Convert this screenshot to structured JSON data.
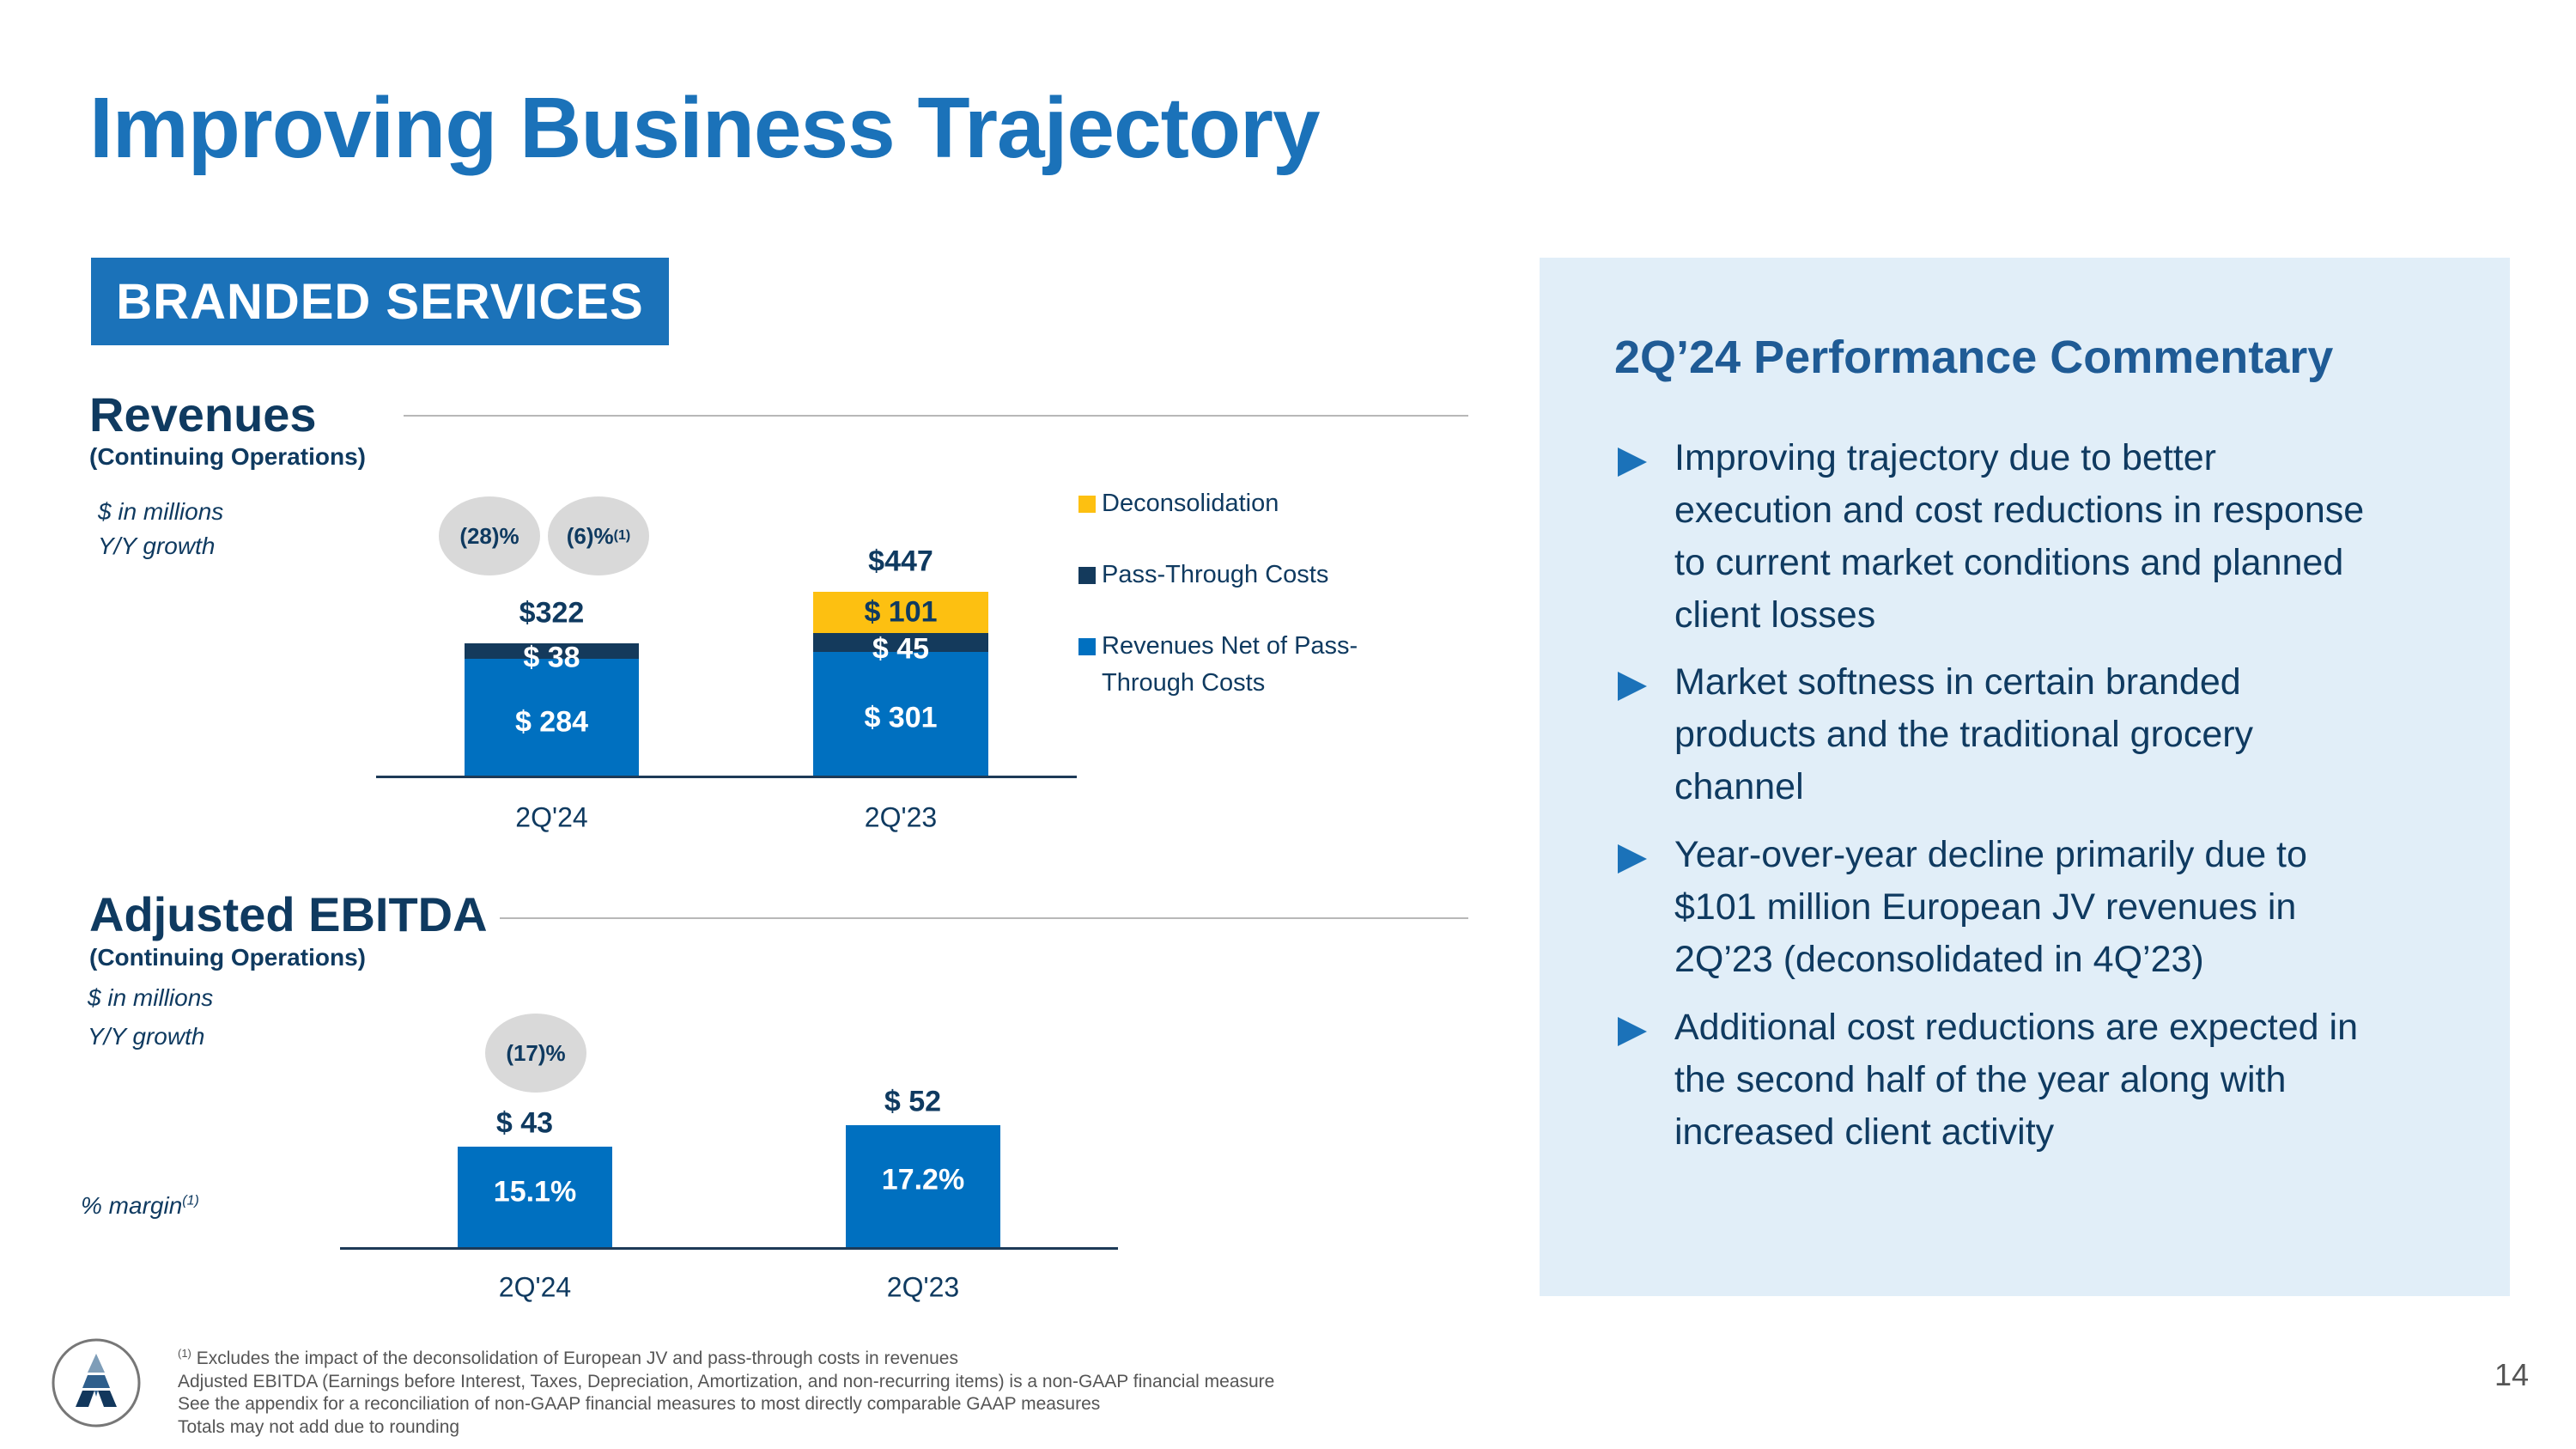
{
  "title": "Improving Business Trajectory",
  "banner": "BRANDED SERVICES",
  "revenues": {
    "heading": "Revenues",
    "subheading": "(Continuing Operations)",
    "units": "$ in millions",
    "growth_label": "Y/Y growth",
    "growth_bubbles": [
      {
        "value": "(28)%",
        "sup": ""
      },
      {
        "value": "(6)%",
        "sup": "(1)"
      }
    ]
  },
  "ebitda": {
    "heading": "Adjusted EBITDA",
    "subheading": "(Continuing Operations)",
    "units": "$ in millions",
    "growth_label": "Y/Y growth",
    "growth_bubble": "(17)%",
    "margin_label": "% margin",
    "margin_sup": "(1)"
  },
  "chart_data": [
    {
      "type": "bar",
      "stacked": true,
      "categories": [
        "2Q'24",
        "2Q'23"
      ],
      "series": [
        {
          "name": "Revenues Net of Pass-Through Costs",
          "values": [
            284,
            301
          ],
          "labels": [
            "$ 284",
            "$ 301"
          ],
          "color": "#0070c0"
        },
        {
          "name": "Pass-Through Costs",
          "values": [
            38,
            45
          ],
          "labels": [
            "$ 38",
            "$ 45"
          ],
          "color": "#143a5c"
        },
        {
          "name": "Deconsolidation",
          "values": [
            0,
            101
          ],
          "labels": [
            "",
            "$ 101"
          ],
          "color": "#fdc011"
        }
      ],
      "totals": [
        "$322",
        "$447"
      ],
      "legend": [
        "Deconsolidation",
        "Pass-Through Costs",
        "Revenues Net of Pass-",
        "Through Costs"
      ],
      "legend_placement": "right"
    },
    {
      "type": "bar",
      "categories": [
        "2Q'24",
        "2Q'23"
      ],
      "values": [
        43,
        52
      ],
      "labels": [
        "$ 43",
        "$ 52"
      ],
      "margins": [
        "15.1%",
        "17.2%"
      ],
      "color": "#0070c0"
    }
  ],
  "commentary": {
    "heading": "2Q’24 Performance Commentary",
    "bullets": [
      [
        "Improving trajectory due to better",
        "execution and cost reductions in response",
        "to current market conditions and planned",
        "client losses"
      ],
      [
        "Market softness in certain branded",
        "products and the traditional grocery",
        "channel"
      ],
      [
        "Year-over-year decline primarily due to",
        "$101 million European JV revenues in",
        "2Q’23 (deconsolidated in 4Q’23)"
      ],
      [
        "Additional cost reductions are expected in",
        "the second half of the year along with",
        "increased client activity"
      ]
    ]
  },
  "footnotes": {
    "sup": "(1)",
    "lines": [
      "Excludes the impact of the deconsolidation of European JV and pass-through costs in revenues",
      "Adjusted EBITDA (Earnings before Interest, Taxes, Depreciation, Amortization, and non-recurring items) is a non-GAAP financial measure",
      "See the appendix for a reconciliation of non-GAAP financial measures to most directly comparable GAAP measures",
      "Totals may not add due to rounding"
    ]
  },
  "page_number": "14",
  "colors": {
    "title": "#1b72b9",
    "bar_blue": "#0070c0",
    "bar_dark": "#143a5c",
    "bar_yellow": "#fdc011",
    "panel_bg": "#e1eef8"
  }
}
